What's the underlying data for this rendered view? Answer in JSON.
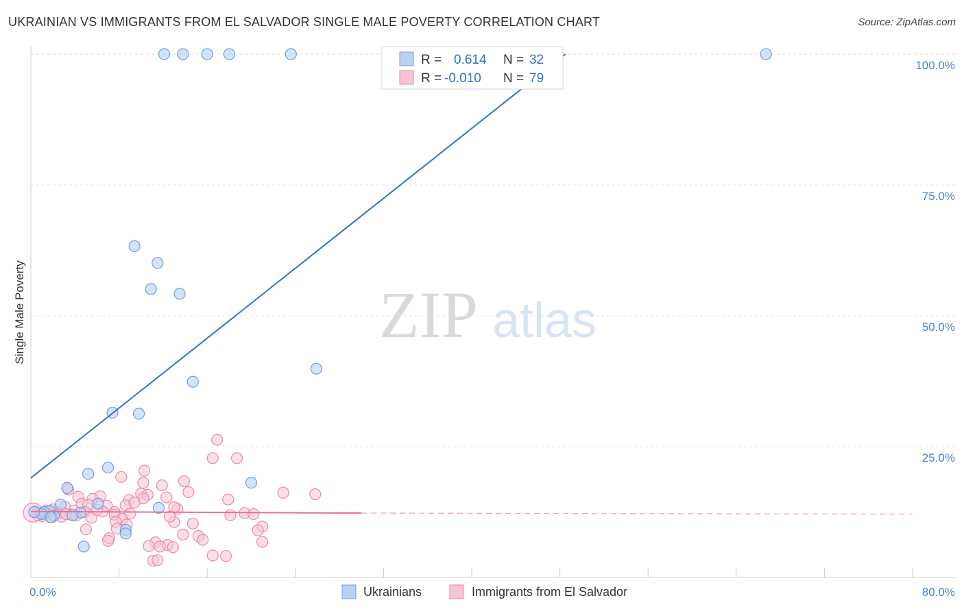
{
  "header": {
    "title": "UKRAINIAN VS IMMIGRANTS FROM EL SALVADOR SINGLE MALE POVERTY CORRELATION CHART",
    "source": "Source: ZipAtlas.com"
  },
  "watermark": {
    "zip": "ZIP",
    "atlas": "atlas"
  },
  "colors": {
    "blue_fill": "#b8d2f4",
    "blue_stroke": "#6f9fdc",
    "blue_line": "#2c72d2",
    "pink_fill": "#f8c4d4",
    "pink_stroke": "#e98aaa",
    "pink_line": "#e8709a",
    "accent_text": "#4a7fc7"
  },
  "legend": {
    "r_label": "R =",
    "n_label": "N =",
    "series": [
      {
        "name": "Ukrainians",
        "r": "0.614",
        "n": "32"
      },
      {
        "name": "Immigrants from El Salvador",
        "r": "-0.010",
        "n": "79"
      }
    ]
  },
  "chart_data": {
    "type": "scatter",
    "title": "UKRAINIAN VS IMMIGRANTS FROM EL SALVADOR SINGLE MALE POVERTY CORRELATION CHART",
    "xlabel": "",
    "ylabel": "Single Male Poverty",
    "xlim": [
      0,
      80
    ],
    "ylim": [
      0,
      103
    ],
    "x_tick_labels": [
      "0.0%",
      "80.0%"
    ],
    "y_ticks": [
      25,
      50,
      75,
      100
    ],
    "y_tick_labels": [
      "25.0%",
      "50.0%",
      "75.0%",
      "100.0%"
    ],
    "grid": true,
    "series": [
      {
        "name": "Ukrainians",
        "points": [
          [
            12.1,
            100
          ],
          [
            13.8,
            100
          ],
          [
            16.0,
            100
          ],
          [
            18.0,
            100
          ],
          [
            23.6,
            100
          ],
          [
            66.7,
            100
          ],
          [
            9.4,
            63.3
          ],
          [
            11.5,
            60.1
          ],
          [
            10.9,
            55.1
          ],
          [
            13.5,
            54.2
          ],
          [
            25.9,
            39.9
          ],
          [
            14.7,
            37.4
          ],
          [
            7.4,
            31.5
          ],
          [
            9.8,
            31.3
          ],
          [
            7.0,
            21.0
          ],
          [
            5.2,
            19.8
          ],
          [
            20.0,
            18.1
          ],
          [
            3.3,
            17.1
          ],
          [
            6.1,
            14.1
          ],
          [
            2.7,
            13.9
          ],
          [
            11.6,
            13.3
          ],
          [
            1.7,
            12.7
          ],
          [
            1.2,
            12.5
          ],
          [
            4.5,
            12.4
          ],
          [
            1.0,
            12.1
          ],
          [
            2.1,
            11.8
          ],
          [
            3.8,
            11.9
          ],
          [
            1.8,
            11.5
          ],
          [
            8.6,
            9.1
          ],
          [
            8.6,
            8.4
          ],
          [
            4.8,
            5.9
          ],
          [
            0.3,
            12.5
          ]
        ]
      },
      {
        "name": "Immigrants from El Salvador",
        "points": [
          [
            16.9,
            26.3
          ],
          [
            16.5,
            22.8
          ],
          [
            18.7,
            22.8
          ],
          [
            10.3,
            20.4
          ],
          [
            8.2,
            19.2
          ],
          [
            13.9,
            18.4
          ],
          [
            10.2,
            18.1
          ],
          [
            11.9,
            17.6
          ],
          [
            3.4,
            16.8
          ],
          [
            14.3,
            16.3
          ],
          [
            10.0,
            16.0
          ],
          [
            10.6,
            15.8
          ],
          [
            22.9,
            16.2
          ],
          [
            25.8,
            15.9
          ],
          [
            4.3,
            15.4
          ],
          [
            6.3,
            15.5
          ],
          [
            12.3,
            15.3
          ],
          [
            5.6,
            15.0
          ],
          [
            8.9,
            14.8
          ],
          [
            10.2,
            15.1
          ],
          [
            17.9,
            14.9
          ],
          [
            4.6,
            14.1
          ],
          [
            3.1,
            13.5
          ],
          [
            5.2,
            13.9
          ],
          [
            6.9,
            13.7
          ],
          [
            8.6,
            13.8
          ],
          [
            9.4,
            14.3
          ],
          [
            13.3,
            13.1
          ],
          [
            13.0,
            13.4
          ],
          [
            2.3,
            12.5
          ],
          [
            3.9,
            12.8
          ],
          [
            4.9,
            12.5
          ],
          [
            6.5,
            12.6
          ],
          [
            7.6,
            12.5
          ],
          [
            1.5,
            12.2
          ],
          [
            2.6,
            12.3
          ],
          [
            3.6,
            12.0
          ],
          [
            7.6,
            12.0
          ],
          [
            19.4,
            12.3
          ],
          [
            20.2,
            12.1
          ],
          [
            1.0,
            11.7
          ],
          [
            1.9,
            11.5
          ],
          [
            2.8,
            11.6
          ],
          [
            5.5,
            11.4
          ],
          [
            8.3,
            11.2
          ],
          [
            0.6,
            11.9
          ],
          [
            7.7,
            10.6
          ],
          [
            13.0,
            10.6
          ],
          [
            14.7,
            10.3
          ],
          [
            8.7,
            10.1
          ],
          [
            21.0,
            9.7
          ],
          [
            7.8,
            9.3
          ],
          [
            20.6,
            9.0
          ],
          [
            5.0,
            9.2
          ],
          [
            13.8,
            8.2
          ],
          [
            15.2,
            7.9
          ],
          [
            7.1,
            7.5
          ],
          [
            15.6,
            7.2
          ],
          [
            7.0,
            7.0
          ],
          [
            11.3,
            6.7
          ],
          [
            21.0,
            6.8
          ],
          [
            12.4,
            6.2
          ],
          [
            10.7,
            6.0
          ],
          [
            11.7,
            5.9
          ],
          [
            12.9,
            5.8
          ],
          [
            16.5,
            4.2
          ],
          [
            17.7,
            4.1
          ],
          [
            11.1,
            3.2
          ],
          [
            11.5,
            3.3
          ],
          [
            0.4,
            12.6
          ],
          [
            2.0,
            13.0
          ],
          [
            1.4,
            12.8
          ],
          [
            3.2,
            12.1
          ],
          [
            4.1,
            11.8
          ],
          [
            6.0,
            12.9
          ],
          [
            9.0,
            12.2
          ],
          [
            12.6,
            11.6
          ],
          [
            18.1,
            11.9
          ],
          [
            0.8,
            12.4
          ]
        ]
      }
    ],
    "trendlines": [
      {
        "series": "Ukrainians",
        "x": [
          0.0,
          48.5
        ],
        "y": [
          19.0,
          100.0
        ]
      },
      {
        "series": "Immigrants from El Salvador",
        "x": [
          0.0,
          30.0
        ],
        "y": [
          12.6,
          12.3
        ],
        "dashed_to_x": 80.0,
        "dashed_end_y": 12.1
      }
    ]
  }
}
